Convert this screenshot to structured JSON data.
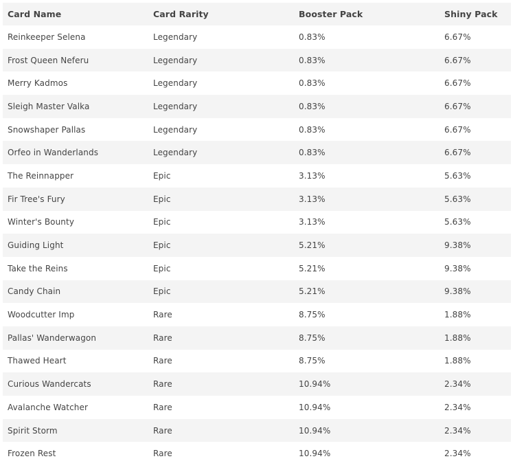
{
  "table": {
    "headers": [
      "Card Name",
      "Card Rarity",
      "Booster Pack",
      "Shiny Pack"
    ],
    "rows": [
      [
        "Reinkeeper Selena",
        "Legendary",
        "0.83%",
        "6.67%"
      ],
      [
        "Frost Queen Neferu",
        "Legendary",
        "0.83%",
        "6.67%"
      ],
      [
        "Merry Kadmos",
        "Legendary",
        "0.83%",
        "6.67%"
      ],
      [
        "Sleigh Master Valka",
        "Legendary",
        "0.83%",
        "6.67%"
      ],
      [
        "Snowshaper Pallas",
        "Legendary",
        "0.83%",
        "6.67%"
      ],
      [
        "Orfeo in Wanderlands",
        "Legendary",
        "0.83%",
        "6.67%"
      ],
      [
        "The Reinnapper",
        "Epic",
        "3.13%",
        "5.63%"
      ],
      [
        "Fir Tree's Fury",
        "Epic",
        "3.13%",
        "5.63%"
      ],
      [
        "Winter's Bounty",
        "Epic",
        "3.13%",
        "5.63%"
      ],
      [
        "Guiding Light",
        "Epic",
        "5.21%",
        "9.38%"
      ],
      [
        "Take the Reins",
        "Epic",
        "5.21%",
        "9.38%"
      ],
      [
        "Candy Chain",
        "Epic",
        "5.21%",
        "9.38%"
      ],
      [
        "Woodcutter Imp",
        "Rare",
        "8.75%",
        "1.88%"
      ],
      [
        "Pallas' Wanderwagon",
        "Rare",
        "8.75%",
        "1.88%"
      ],
      [
        "Thawed Heart",
        "Rare",
        "8.75%",
        "1.88%"
      ],
      [
        "Curious Wandercats",
        "Rare",
        "10.94%",
        "2.34%"
      ],
      [
        "Avalanche Watcher",
        "Rare",
        "10.94%",
        "2.34%"
      ],
      [
        "Spirit Storm",
        "Rare",
        "10.94%",
        "2.34%"
      ],
      [
        "Frozen Rest",
        "Rare",
        "10.94%",
        "2.34%"
      ]
    ]
  }
}
